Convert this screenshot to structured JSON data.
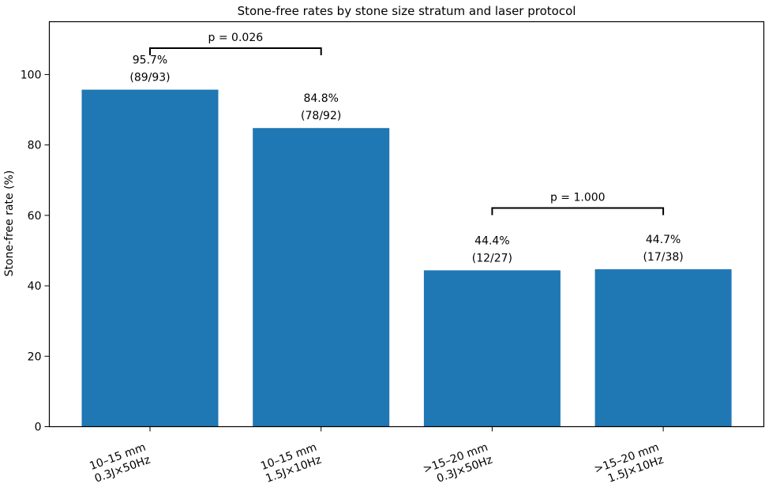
{
  "chart_data": {
    "type": "bar",
    "title": "Stone-free rates by stone size stratum and laser protocol",
    "xlabel": "",
    "ylabel": "Stone-free rate (%)",
    "ylim": [
      0,
      115
    ],
    "yticks": [
      0,
      20,
      40,
      60,
      80,
      100
    ],
    "grid": false,
    "categories": [
      [
        "10–15 mm",
        "0.3J×50Hz"
      ],
      [
        "10–15 mm",
        "1.5J×10Hz"
      ],
      [
        ">15–20 mm",
        "0.3J×50Hz"
      ],
      [
        ">15–20 mm",
        "1.5J×10Hz"
      ]
    ],
    "values": [
      95.7,
      84.8,
      44.4,
      44.7
    ],
    "value_labels": [
      "95.7%",
      "84.8%",
      "44.4%",
      "44.7%"
    ],
    "count_labels": [
      "(89/93)",
      "(78/92)",
      "(12/27)",
      "(17/38)"
    ],
    "bar_color": "#1f77b4",
    "annotations": [
      {
        "from": 0,
        "to": 1,
        "level": 107.5,
        "text": "p = 0.026"
      },
      {
        "from": 2,
        "to": 3,
        "level": 62.1,
        "text": "p = 1.000"
      }
    ]
  }
}
